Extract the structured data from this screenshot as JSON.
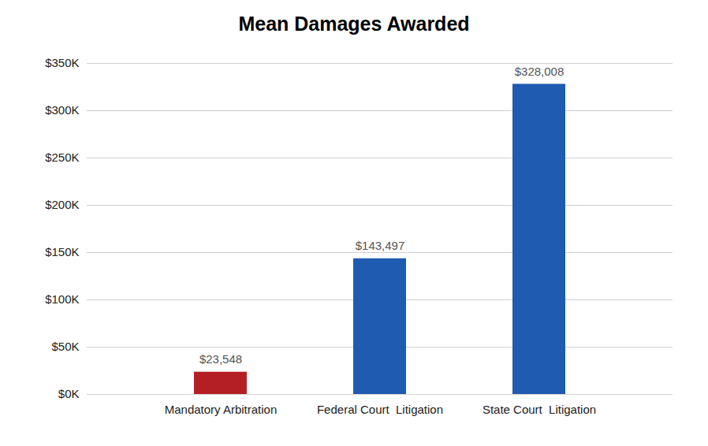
{
  "chart_data": {
    "type": "bar",
    "title": "Mean Damages Awarded",
    "categories": [
      "Mandatory Arbitration",
      "Federal Court  Litigation",
      "State Court  Litigation"
    ],
    "values": [
      23548,
      143497,
      328008
    ],
    "value_labels": [
      "$23,548",
      "$143,497",
      "$328,008"
    ],
    "colors": [
      "#b41f24",
      "#1f5bb0",
      "#1f5bb0"
    ],
    "ylim": [
      0,
      350000
    ],
    "yticks": [
      {
        "value": 0,
        "label": "$0K"
      },
      {
        "value": 50000,
        "label": "$50K"
      },
      {
        "value": 100000,
        "label": "$100K"
      },
      {
        "value": 150000,
        "label": "$150K"
      },
      {
        "value": 200000,
        "label": "$200K"
      },
      {
        "value": 250000,
        "label": "$250K"
      },
      {
        "value": 300000,
        "label": "$300K"
      },
      {
        "value": 350000,
        "label": "$350K"
      }
    ],
    "grid": true,
    "data_labels": true
  }
}
